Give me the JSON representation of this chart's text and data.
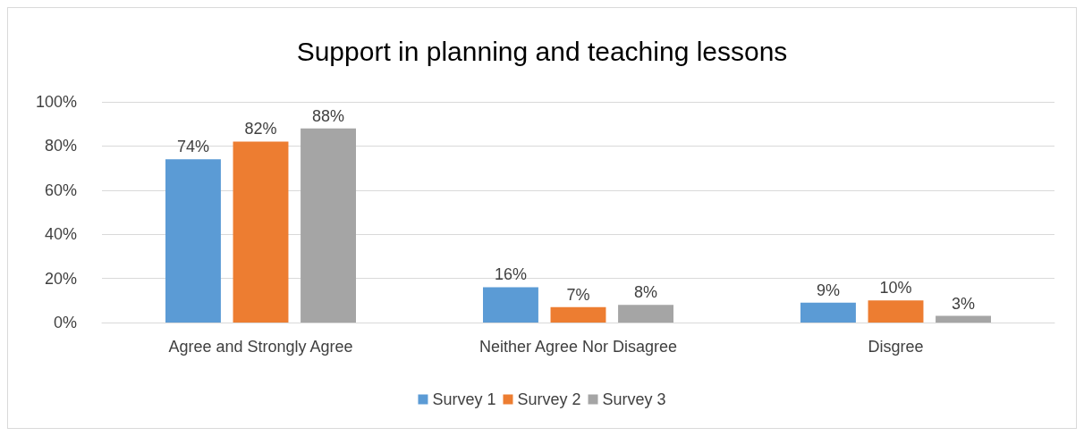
{
  "chart_data": {
    "type": "bar",
    "title": "Support in planning and teaching lessons",
    "categories": [
      "Agree and Strongly Agree",
      "Neither Agree Nor Disagree",
      "Disgree"
    ],
    "series": [
      {
        "name": "Survey 1",
        "color": "#5b9bd5",
        "values": [
          74,
          16,
          9
        ],
        "value_labels": [
          "74%",
          "16%",
          "9%"
        ]
      },
      {
        "name": "Survey 2",
        "color": "#ed7d31",
        "values": [
          82,
          7,
          10
        ],
        "value_labels": [
          "82%",
          "7%",
          "10%"
        ]
      },
      {
        "name": "Survey 3",
        "color": "#a5a5a5",
        "values": [
          88,
          8,
          3
        ],
        "value_labels": [
          "88%",
          "8%",
          "3%"
        ]
      }
    ],
    "ylim": [
      0,
      100
    ],
    "yticks": [
      {
        "value": 0,
        "label": "0%"
      },
      {
        "value": 20,
        "label": "20%"
      },
      {
        "value": 40,
        "label": "40%"
      },
      {
        "value": 60,
        "label": "60%"
      },
      {
        "value": 80,
        "label": "80%"
      },
      {
        "value": 100,
        "label": "100%"
      }
    ],
    "grid": "y",
    "legend": "bottom"
  }
}
